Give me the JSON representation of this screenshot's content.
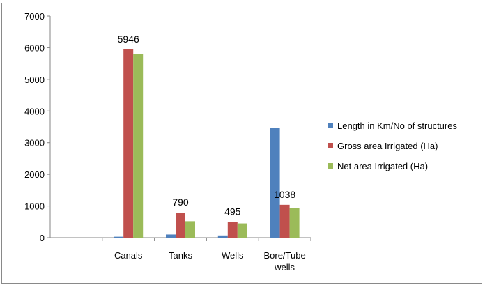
{
  "chart_data": {
    "type": "bar",
    "categories": [
      "",
      "Canals",
      "Tanks",
      "Wells",
      "Bore/Tube wells"
    ],
    "category_lines": [
      [
        ""
      ],
      [
        "Canals"
      ],
      [
        "Tanks"
      ],
      [
        "Wells"
      ],
      [
        "Bore/Tube",
        "wells"
      ]
    ],
    "series": [
      {
        "name": "Length in Km/No of structures",
        "color": "#4f81bd",
        "values": [
          0,
          30,
          100,
          70,
          3460
        ]
      },
      {
        "name": "Gross area Irrigated (Ha)",
        "color": "#c0504d",
        "values": [
          0,
          5946,
          790,
          495,
          1038
        ]
      },
      {
        "name": "Net area Irrigated (Ha)",
        "color": "#9bbb59",
        "values": [
          0,
          5800,
          520,
          450,
          940
        ]
      }
    ],
    "data_labels": [
      {
        "category_index": 1,
        "text": "5946"
      },
      {
        "category_index": 2,
        "text": "790"
      },
      {
        "category_index": 3,
        "text": "495"
      },
      {
        "category_index": 4,
        "text": "1038"
      }
    ],
    "y_ticks": [
      "0",
      "1000",
      "2000",
      "3000",
      "4000",
      "5000",
      "6000",
      "7000"
    ],
    "ylim": [
      0,
      7000
    ],
    "grid": false,
    "legend_position": "right",
    "title": "",
    "xlabel": "",
    "ylabel": ""
  }
}
